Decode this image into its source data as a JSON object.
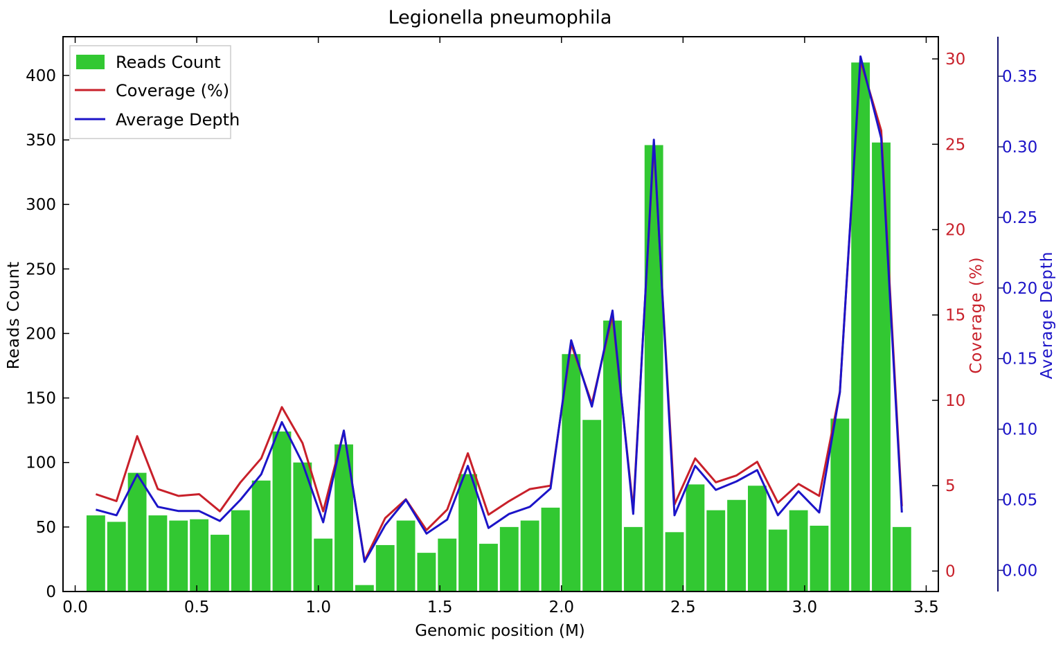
{
  "chart_data": {
    "type": "bar",
    "title": "Legionella pneumophila",
    "xlabel": "Genomic position (M)",
    "ylabel": "Reads Count",
    "ylabel_right1": "Coverage (%)",
    "ylabel_right2": "Average Depth",
    "xlim": [
      -0.05,
      3.55
    ],
    "ylim": [
      0,
      430
    ],
    "ylim_right1": [
      -1.2,
      31.3
    ],
    "ylim_right2": [
      -0.015,
      0.378
    ],
    "x_ticks": [
      "0.0",
      "0.5",
      "1.0",
      "1.5",
      "2.0",
      "2.5",
      "3.0",
      "3.5"
    ],
    "y_ticks": [
      "0",
      "50",
      "100",
      "150",
      "200",
      "250",
      "300",
      "350",
      "400"
    ],
    "y_ticks_right1": [
      "0",
      "5",
      "10",
      "15",
      "20",
      "25",
      "30"
    ],
    "y_ticks_right2": [
      "0.00",
      "0.05",
      "0.10",
      "0.15",
      "0.20",
      "0.25",
      "0.30",
      "0.35"
    ],
    "grid": false,
    "legend_position": "top-left",
    "x": [
      0.085,
      0.17,
      0.255,
      0.34,
      0.425,
      0.51,
      0.595,
      0.68,
      0.765,
      0.85,
      0.935,
      1.02,
      1.105,
      1.19,
      1.275,
      1.36,
      1.445,
      1.53,
      1.615,
      1.7,
      1.785,
      1.87,
      1.955,
      2.04,
      2.125,
      2.21,
      2.295,
      2.38,
      2.465,
      2.55,
      2.635,
      2.72,
      2.805,
      2.89,
      2.975,
      3.06,
      3.145,
      3.23,
      3.315,
      3.4
    ],
    "series": [
      {
        "name": "Reads Count",
        "type": "bar",
        "axis": "left",
        "color": "#32c832",
        "values": [
          59,
          54,
          92,
          59,
          55,
          56,
          44,
          63,
          86,
          124,
          100,
          41,
          114,
          5,
          36,
          55,
          30,
          41,
          91,
          37,
          50,
          55,
          65,
          184,
          133,
          210,
          50,
          346,
          46,
          83,
          63,
          71,
          82,
          48,
          63,
          51,
          134,
          410,
          348,
          50
        ]
      },
      {
        "name": "Coverage (%)",
        "type": "line",
        "axis": "right1",
        "color": "#c8202a",
        "values": [
          4.5,
          4.1,
          7.9,
          4.8,
          4.4,
          4.5,
          3.5,
          5.2,
          6.6,
          9.6,
          7.5,
          3.5,
          8.2,
          0.6,
          3.1,
          4.2,
          2.4,
          3.6,
          6.9,
          3.3,
          4.1,
          4.8,
          5.0,
          13.3,
          9.8,
          15.0,
          3.6,
          25.0,
          3.9,
          6.6,
          5.2,
          5.6,
          6.4,
          4.0,
          5.1,
          4.4,
          10.5,
          29.9,
          25.8,
          3.8
        ]
      },
      {
        "name": "Average Depth",
        "type": "line",
        "axis": "right2",
        "color": "#1c14c8",
        "values": [
          0.043,
          0.039,
          0.068,
          0.045,
          0.042,
          0.042,
          0.035,
          0.05,
          0.068,
          0.105,
          0.076,
          0.034,
          0.099,
          0.006,
          0.032,
          0.05,
          0.026,
          0.036,
          0.074,
          0.03,
          0.04,
          0.045,
          0.058,
          0.163,
          0.116,
          0.184,
          0.04,
          0.305,
          0.039,
          0.074,
          0.057,
          0.063,
          0.071,
          0.039,
          0.056,
          0.041,
          0.126,
          0.364,
          0.306,
          0.041
        ]
      }
    ]
  }
}
